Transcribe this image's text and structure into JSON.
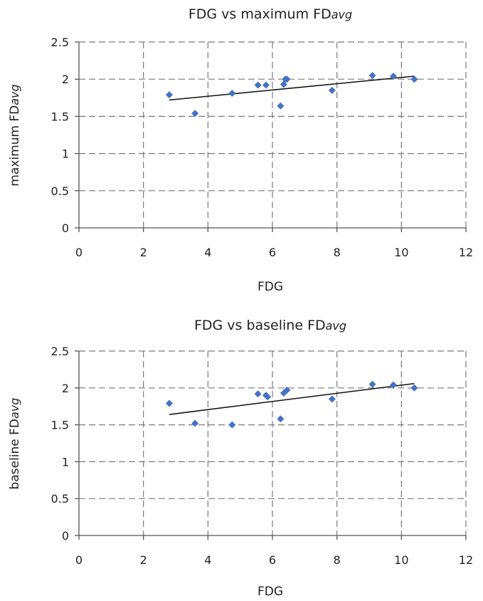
{
  "chart_data": [
    {
      "type": "scatter",
      "title_main": "FDG vs maximum FD",
      "title_sub": "avg",
      "xlabel": "FDG",
      "ylabel_main": "maximum FD",
      "ylabel_sub": "avg",
      "xlim": [
        0,
        12
      ],
      "ylim": [
        0,
        2.5
      ],
      "xticks": [
        "0",
        "2",
        "4",
        "6",
        "8",
        "10",
        "12"
      ],
      "yticks": [
        "0",
        "0.5",
        "1",
        "1.5",
        "2",
        "2.5"
      ],
      "grid": true,
      "marker_color": "#4472c4",
      "trendline": {
        "x": [
          2.8,
          10.4
        ],
        "y": [
          1.72,
          2.04
        ]
      },
      "x": [
        2.8,
        3.6,
        4.75,
        5.55,
        5.8,
        6.25,
        6.35,
        6.4,
        6.45,
        7.85,
        9.1,
        9.75,
        10.4
      ],
      "y": [
        1.79,
        1.54,
        1.81,
        1.92,
        1.92,
        1.64,
        1.93,
        2.0,
        2.0,
        1.85,
        2.05,
        2.04,
        2.0
      ]
    },
    {
      "type": "scatter",
      "title_main": "FDG vs baseline FD",
      "title_sub": "avg",
      "xlabel": "FDG",
      "ylabel_main": "baseline FD",
      "ylabel_sub": "avg",
      "xlim": [
        0,
        12
      ],
      "ylim": [
        0,
        2.5
      ],
      "xticks": [
        "0",
        "2",
        "4",
        "6",
        "8",
        "10",
        "12"
      ],
      "yticks": [
        "0",
        "0.5",
        "1",
        "1.5",
        "2",
        "2.5"
      ],
      "grid": true,
      "marker_color": "#4472c4",
      "trendline": {
        "x": [
          2.8,
          10.4
        ],
        "y": [
          1.64,
          2.06
        ]
      },
      "x": [
        2.8,
        3.6,
        4.75,
        5.55,
        5.8,
        5.85,
        6.25,
        6.35,
        6.45,
        7.85,
        9.1,
        9.75,
        10.4
      ],
      "y": [
        1.79,
        1.52,
        1.5,
        1.92,
        1.9,
        1.88,
        1.58,
        1.93,
        1.97,
        1.85,
        2.05,
        2.04,
        2.0
      ]
    }
  ]
}
